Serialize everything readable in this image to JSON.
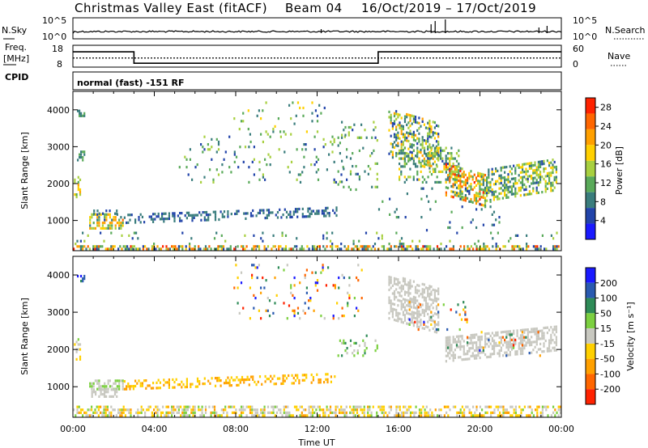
{
  "header": {
    "radar": "Christmas Valley East (fitACF)",
    "beam": "Beam 04",
    "dates": "16/Oct/2019 – 17/Oct/2019"
  },
  "side_labels": {
    "nsky": "N.Sky",
    "nsearch": "N.Search",
    "freq_line1": "Freq.",
    "freq_line2": "[MHz]",
    "nave": "Nave",
    "cpid": "CPID",
    "cpid_value": "normal (fast) -151 RF"
  },
  "noise_panel": {
    "left_ticks": [
      "10^5",
      "10^0"
    ],
    "right_ticks": [
      "10^5",
      "10^0"
    ]
  },
  "freq_panel": {
    "left_ticks": [
      "18",
      "8"
    ],
    "right_ticks": [
      "60",
      "0"
    ],
    "ylim_left": [
      8,
      18
    ],
    "ylim_right": [
      0,
      60
    ],
    "freq_steps": [
      {
        "from_hour": 0.0,
        "to_hour": 3.0,
        "freq": 15.0
      },
      {
        "from_hour": 3.0,
        "to_hour": 15.0,
        "freq": 9.8
      },
      {
        "from_hour": 15.0,
        "to_hour": 24.0,
        "freq": 15.0
      }
    ],
    "nave_value": 25
  },
  "chart_data": [
    {
      "type": "heatmap",
      "name": "power",
      "ylabel": "Slant Range [km]",
      "ylim": [
        180,
        4500
      ],
      "yticks": [
        "1000",
        "2000",
        "3000",
        "4000"
      ],
      "yticks_values": [
        1000,
        2000,
        3000,
        4000
      ],
      "xlim_hours": [
        0,
        24
      ],
      "colorbar_label": "Power [dB]",
      "colorbar_ticks": [
        "4",
        "8",
        "12",
        "16",
        "20",
        "24",
        "28"
      ],
      "colorbar_range": [
        0,
        30
      ],
      "colors": [
        "#1a1aff",
        "#2244aa",
        "#3a7d7d",
        "#5aaa5a",
        "#a8d040",
        "#ffd000",
        "#ffa000",
        "#ff6600",
        "#ff2200"
      ],
      "regions": [
        {
          "t0": 0.05,
          "t1": 0.4,
          "r0": 1600,
          "r1": 2200,
          "density": 0.5,
          "v": [
            12,
            22
          ]
        },
        {
          "t0": 0.2,
          "t1": 0.6,
          "r0": 2600,
          "r1": 2900,
          "density": 0.4,
          "v": [
            8,
            14
          ]
        },
        {
          "t0": 0.2,
          "t1": 0.6,
          "r0": 3800,
          "r1": 4000,
          "density": 0.5,
          "v": [
            8,
            12
          ]
        },
        {
          "t0": 0.8,
          "t1": 2.5,
          "r0": 750,
          "r1": 1200,
          "density": 0.5,
          "v": [
            6,
            24
          ]
        },
        {
          "t0": 1.0,
          "t1": 2.2,
          "r0": 1150,
          "r1": 1300,
          "density": 0.5,
          "v": [
            4,
            10
          ]
        },
        {
          "t0": 2.5,
          "t1": 13.0,
          "r0": 1000,
          "r1": 1280,
          "density": 0.35,
          "v": [
            4,
            10
          ],
          "slope": 200
        },
        {
          "t0": 5.2,
          "t1": 13.5,
          "r0": 2000,
          "r1": 3300,
          "density": 0.07,
          "v": [
            4,
            16
          ]
        },
        {
          "t0": 7.8,
          "t1": 12.5,
          "r0": 3300,
          "r1": 4300,
          "density": 0.06,
          "v": [
            6,
            20
          ]
        },
        {
          "t0": 13.0,
          "t1": 15.0,
          "r0": 1800,
          "r1": 3700,
          "density": 0.08,
          "v": [
            6,
            16
          ]
        },
        {
          "t0": 15.5,
          "t1": 18.0,
          "r0": 2500,
          "r1": 3850,
          "density": 0.45,
          "v": [
            4,
            22
          ],
          "slope": -400
        },
        {
          "t0": 16.0,
          "t1": 19.0,
          "r0": 2000,
          "r1": 3000,
          "density": 0.3,
          "v": [
            6,
            18
          ]
        },
        {
          "t0": 18.3,
          "t1": 20.3,
          "r0": 1500,
          "r1": 2400,
          "density": 0.55,
          "v": [
            8,
            28
          ],
          "slope": -300
        },
        {
          "t0": 20.3,
          "t1": 23.8,
          "r0": 1650,
          "r1": 2550,
          "density": 0.5,
          "v": [
            6,
            20
          ],
          "slope": 300
        },
        {
          "t0": 15.0,
          "t1": 21.0,
          "r0": 700,
          "r1": 1900,
          "density": 0.04,
          "v": [
            4,
            12
          ]
        },
        {
          "t0": 0.0,
          "t1": 24.0,
          "r0": 190,
          "r1": 330,
          "density": 0.55,
          "v": [
            4,
            28
          ]
        },
        {
          "t0": 0.0,
          "t1": 24.0,
          "r0": 330,
          "r1": 700,
          "density": 0.05,
          "v": [
            4,
            16
          ]
        }
      ]
    },
    {
      "type": "heatmap",
      "name": "velocity",
      "ylabel": "Slant Range [km]",
      "ylim": [
        180,
        4500
      ],
      "yticks": [
        "1000",
        "2000",
        "3000",
        "4000"
      ],
      "yticks_values": [
        1000,
        2000,
        3000,
        4000
      ],
      "xlim_hours": [
        0,
        24
      ],
      "xticks": [
        "00:00",
        "04:00",
        "08:00",
        "12:00",
        "16:00",
        "20:00",
        "00:00"
      ],
      "xlabel": "Time UT",
      "colorbar_label": "Velocity [m s⁻¹]",
      "colorbar_ticks": [
        "200",
        "100",
        "50",
        "15",
        "-15",
        "-50",
        "-100",
        "-200"
      ],
      "colors": [
        "#1a1aff",
        "#2a5ab0",
        "#2e8b57",
        "#7cd040",
        "#c8c8c0",
        "#ffd000",
        "#ffa000",
        "#ff6600",
        "#ff2200"
      ],
      "regions": [
        {
          "t0": 0.05,
          "t1": 0.4,
          "r0": 1700,
          "r1": 2300,
          "density": 0.3,
          "v": [
            3,
            5
          ]
        },
        {
          "t0": 0.2,
          "t1": 0.6,
          "r0": 3800,
          "r1": 4000,
          "density": 0.5,
          "v": [
            0,
            2
          ]
        },
        {
          "t0": 0.8,
          "t1": 2.5,
          "r0": 900,
          "r1": 1200,
          "density": 0.55,
          "v": [
            3,
            4
          ]
        },
        {
          "t0": 0.9,
          "t1": 2.2,
          "r0": 700,
          "r1": 950,
          "density": 0.6,
          "v": [
            4,
            4
          ]
        },
        {
          "t0": 2.5,
          "t1": 13.0,
          "r0": 1000,
          "r1": 1280,
          "density": 0.35,
          "v": [
            5,
            6
          ],
          "slope": 200
        },
        {
          "t0": 7.8,
          "t1": 14.5,
          "r0": 2800,
          "r1": 4300,
          "density": 0.06,
          "v": [
            0,
            8
          ]
        },
        {
          "t0": 13.0,
          "t1": 15.0,
          "r0": 1800,
          "r1": 2400,
          "density": 0.1,
          "v": [
            2,
            4
          ]
        },
        {
          "t0": 15.5,
          "t1": 18.0,
          "r0": 2600,
          "r1": 3850,
          "density": 0.5,
          "v": [
            4,
            4
          ],
          "slope": -400
        },
        {
          "t0": 16.5,
          "t1": 19.5,
          "r0": 2500,
          "r1": 3300,
          "density": 0.08,
          "v": [
            0,
            8
          ]
        },
        {
          "t0": 18.3,
          "t1": 23.8,
          "r0": 1800,
          "r1": 2500,
          "density": 0.5,
          "v": [
            4,
            4
          ],
          "slope": 300
        },
        {
          "t0": 18.3,
          "t1": 23.0,
          "r0": 1800,
          "r1": 2500,
          "density": 0.05,
          "v": [
            0,
            8
          ]
        },
        {
          "t0": 0.0,
          "t1": 24.0,
          "r0": 190,
          "r1": 500,
          "density": 0.5,
          "v": [
            3,
            6
          ]
        }
      ]
    }
  ]
}
